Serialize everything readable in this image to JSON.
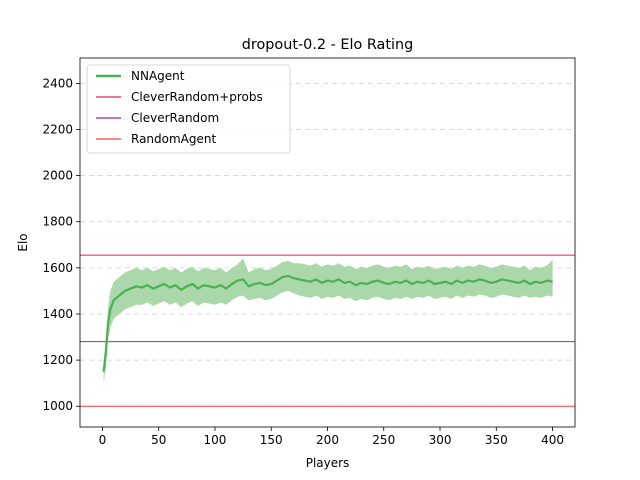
{
  "chart_data": {
    "type": "line",
    "title": "dropout-0.2 - Elo Rating",
    "xlabel": "Players",
    "ylabel": "Elo",
    "xlim": [
      -19.95,
      419.95
    ],
    "ylim": [
      910,
      2510
    ],
    "xticks": [
      0,
      50,
      100,
      150,
      200,
      250,
      300,
      350,
      400
    ],
    "yticks": [
      1000,
      1200,
      1400,
      1600,
      1800,
      2000,
      2200,
      2400
    ],
    "grid": "y-dashed",
    "legend_position": "top-left",
    "series": [
      {
        "name": "NNAgent",
        "type": "line_with_band",
        "color": "#4caf50",
        "band_color": "#a5d6a7",
        "x": [
          1,
          3,
          5,
          7,
          10,
          15,
          20,
          25,
          30,
          35,
          40,
          45,
          50,
          55,
          60,
          65,
          70,
          75,
          80,
          85,
          90,
          95,
          100,
          105,
          110,
          115,
          120,
          125,
          130,
          135,
          140,
          145,
          150,
          155,
          160,
          165,
          170,
          175,
          180,
          185,
          190,
          195,
          200,
          205,
          210,
          215,
          220,
          225,
          230,
          235,
          240,
          245,
          250,
          255,
          260,
          265,
          270,
          275,
          280,
          285,
          290,
          295,
          300,
          305,
          310,
          315,
          320,
          325,
          330,
          335,
          340,
          345,
          350,
          355,
          360,
          365,
          370,
          375,
          380,
          385,
          390,
          395,
          400
        ],
        "y": [
          1150,
          1230,
          1360,
          1420,
          1460,
          1480,
          1500,
          1510,
          1520,
          1515,
          1525,
          1510,
          1520,
          1530,
          1515,
          1525,
          1505,
          1520,
          1530,
          1510,
          1525,
          1520,
          1515,
          1525,
          1510,
          1530,
          1545,
          1550,
          1520,
          1530,
          1535,
          1525,
          1530,
          1545,
          1560,
          1565,
          1555,
          1550,
          1545,
          1540,
          1550,
          1535,
          1545,
          1540,
          1550,
          1535,
          1540,
          1525,
          1535,
          1530,
          1540,
          1545,
          1535,
          1530,
          1540,
          1535,
          1545,
          1530,
          1540,
          1535,
          1545,
          1530,
          1535,
          1540,
          1530,
          1545,
          1535,
          1545,
          1540,
          1550,
          1545,
          1535,
          1540,
          1550,
          1545,
          1540,
          1535,
          1545,
          1530,
          1540,
          1535,
          1545,
          1540
        ],
        "lower": [
          1100,
          1170,
          1290,
          1340,
          1380,
          1400,
          1420,
          1430,
          1440,
          1440,
          1450,
          1435,
          1445,
          1455,
          1440,
          1450,
          1430,
          1445,
          1455,
          1435,
          1450,
          1445,
          1440,
          1450,
          1440,
          1460,
          1475,
          1480,
          1460,
          1465,
          1470,
          1460,
          1465,
          1480,
          1495,
          1500,
          1490,
          1480,
          1475,
          1470,
          1480,
          1465,
          1475,
          1470,
          1480,
          1465,
          1470,
          1455,
          1465,
          1460,
          1470,
          1475,
          1465,
          1460,
          1470,
          1465,
          1475,
          1465,
          1475,
          1470,
          1480,
          1465,
          1470,
          1475,
          1465,
          1480,
          1470,
          1480,
          1475,
          1485,
          1480,
          1470,
          1475,
          1485,
          1480,
          1475,
          1470,
          1480,
          1470,
          1475,
          1470,
          1480,
          1475
        ],
        "upper": [
          1200,
          1290,
          1430,
          1500,
          1540,
          1560,
          1580,
          1590,
          1600,
          1590,
          1600,
          1585,
          1595,
          1605,
          1590,
          1600,
          1580,
          1595,
          1605,
          1585,
          1600,
          1595,
          1590,
          1600,
          1580,
          1600,
          1615,
          1640,
          1580,
          1595,
          1600,
          1590,
          1595,
          1610,
          1625,
          1630,
          1620,
          1620,
          1615,
          1610,
          1620,
          1605,
          1615,
          1610,
          1620,
          1605,
          1610,
          1595,
          1605,
          1600,
          1610,
          1615,
          1605,
          1600,
          1610,
          1605,
          1615,
          1595,
          1605,
          1600,
          1610,
          1595,
          1600,
          1605,
          1595,
          1610,
          1600,
          1610,
          1605,
          1615,
          1610,
          1600,
          1605,
          1615,
          1610,
          1605,
          1600,
          1610,
          1590,
          1605,
          1600,
          1610,
          1635
        ]
      },
      {
        "name": "CleverRandom+probs",
        "type": "hline",
        "color": "#e91e63",
        "y": 1655
      },
      {
        "name": "CleverRandom",
        "type": "hline",
        "color": "#9c27b0",
        "y": 1280
      },
      {
        "name": "RandomAgent",
        "type": "hline",
        "color": "#f44336",
        "y": 1000
      }
    ]
  }
}
